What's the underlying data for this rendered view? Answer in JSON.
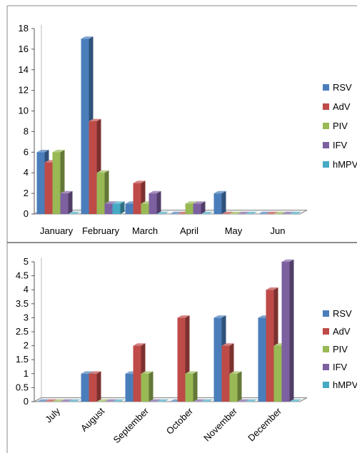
{
  "chart_data": [
    {
      "type": "bar",
      "categories": [
        "January",
        "February",
        "March",
        "April",
        "May",
        "Jun"
      ],
      "series": [
        {
          "name": "RSV",
          "values": [
            6,
            17,
            1,
            0,
            2,
            0
          ]
        },
        {
          "name": "AdV",
          "values": [
            5,
            9,
            3,
            0,
            0,
            0
          ]
        },
        {
          "name": "PIV",
          "values": [
            6,
            4,
            1,
            1,
            0,
            0
          ]
        },
        {
          "name": "IFV",
          "values": [
            2,
            1,
            2,
            1,
            0,
            0
          ]
        },
        {
          "name": "hMPV",
          "values": [
            0,
            1,
            0,
            0,
            0,
            0
          ]
        }
      ],
      "ylim": [
        0,
        18
      ],
      "yticks": [
        0,
        2,
        4,
        6,
        8,
        10,
        12,
        14,
        16,
        18
      ],
      "legend": "right",
      "grid": false
    },
    {
      "type": "bar",
      "categories": [
        "July",
        "August",
        "September",
        "October",
        "November",
        "December"
      ],
      "series": [
        {
          "name": "RSV",
          "values": [
            0,
            1,
            1,
            0,
            3,
            3
          ]
        },
        {
          "name": "AdV",
          "values": [
            0,
            1,
            2,
            3,
            2,
            4
          ]
        },
        {
          "name": "PIV",
          "values": [
            0,
            0,
            1,
            1,
            1,
            2
          ]
        },
        {
          "name": "IFV",
          "values": [
            0,
            0,
            0,
            0,
            0,
            5
          ]
        },
        {
          "name": "hMPV",
          "values": [
            0,
            0,
            0,
            0,
            0,
            0
          ]
        }
      ],
      "ylim": [
        0,
        5
      ],
      "yticks": [
        0,
        0.5,
        1,
        1.5,
        2,
        2.5,
        3,
        3.5,
        4,
        4.5,
        5
      ],
      "legend": "right",
      "grid": false
    }
  ],
  "colors": {
    "RSV": "#4a7ebb",
    "AdV": "#be4b48",
    "PIV": "#98b954",
    "IFV": "#7d60a0",
    "hMPV": "#46aac5"
  }
}
